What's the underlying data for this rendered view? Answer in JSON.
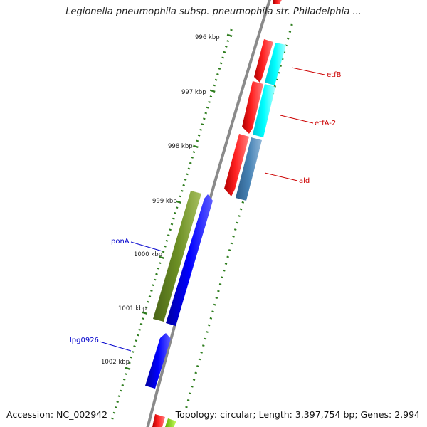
{
  "title": "Legionella pneumophila subsp. pneumophila str. Philadelphia ...",
  "footer": {
    "accession": "Accession: NC_002942",
    "summary": "Topology: circular; Length: 3,397,754 bp; Genes: 2,994"
  },
  "tick_labels": [
    "996 kbp",
    "997 kbp",
    "998 kbp",
    "999 kbp",
    "1000 kbp",
    "1001 kbp",
    "1002 kbp"
  ],
  "gene_labels": [
    {
      "name": "etfB",
      "color": "#cc0000"
    },
    {
      "name": "etfA-2",
      "color": "#cc0000"
    },
    {
      "name": "ald",
      "color": "#cc0000"
    },
    {
      "name": "ponA",
      "color": "#0000cc"
    },
    {
      "name": "lpg0926",
      "color": "#0000cc"
    }
  ],
  "colors": {
    "backbone": "#8a8a8a",
    "tick": "#2e7d1e",
    "forward_gene": "#ff0000",
    "etf_gene": "#00ffff",
    "ald_gene": "#4682b4",
    "pona_gene": "#6b8e23",
    "reverse_gene": "#0000ff"
  }
}
